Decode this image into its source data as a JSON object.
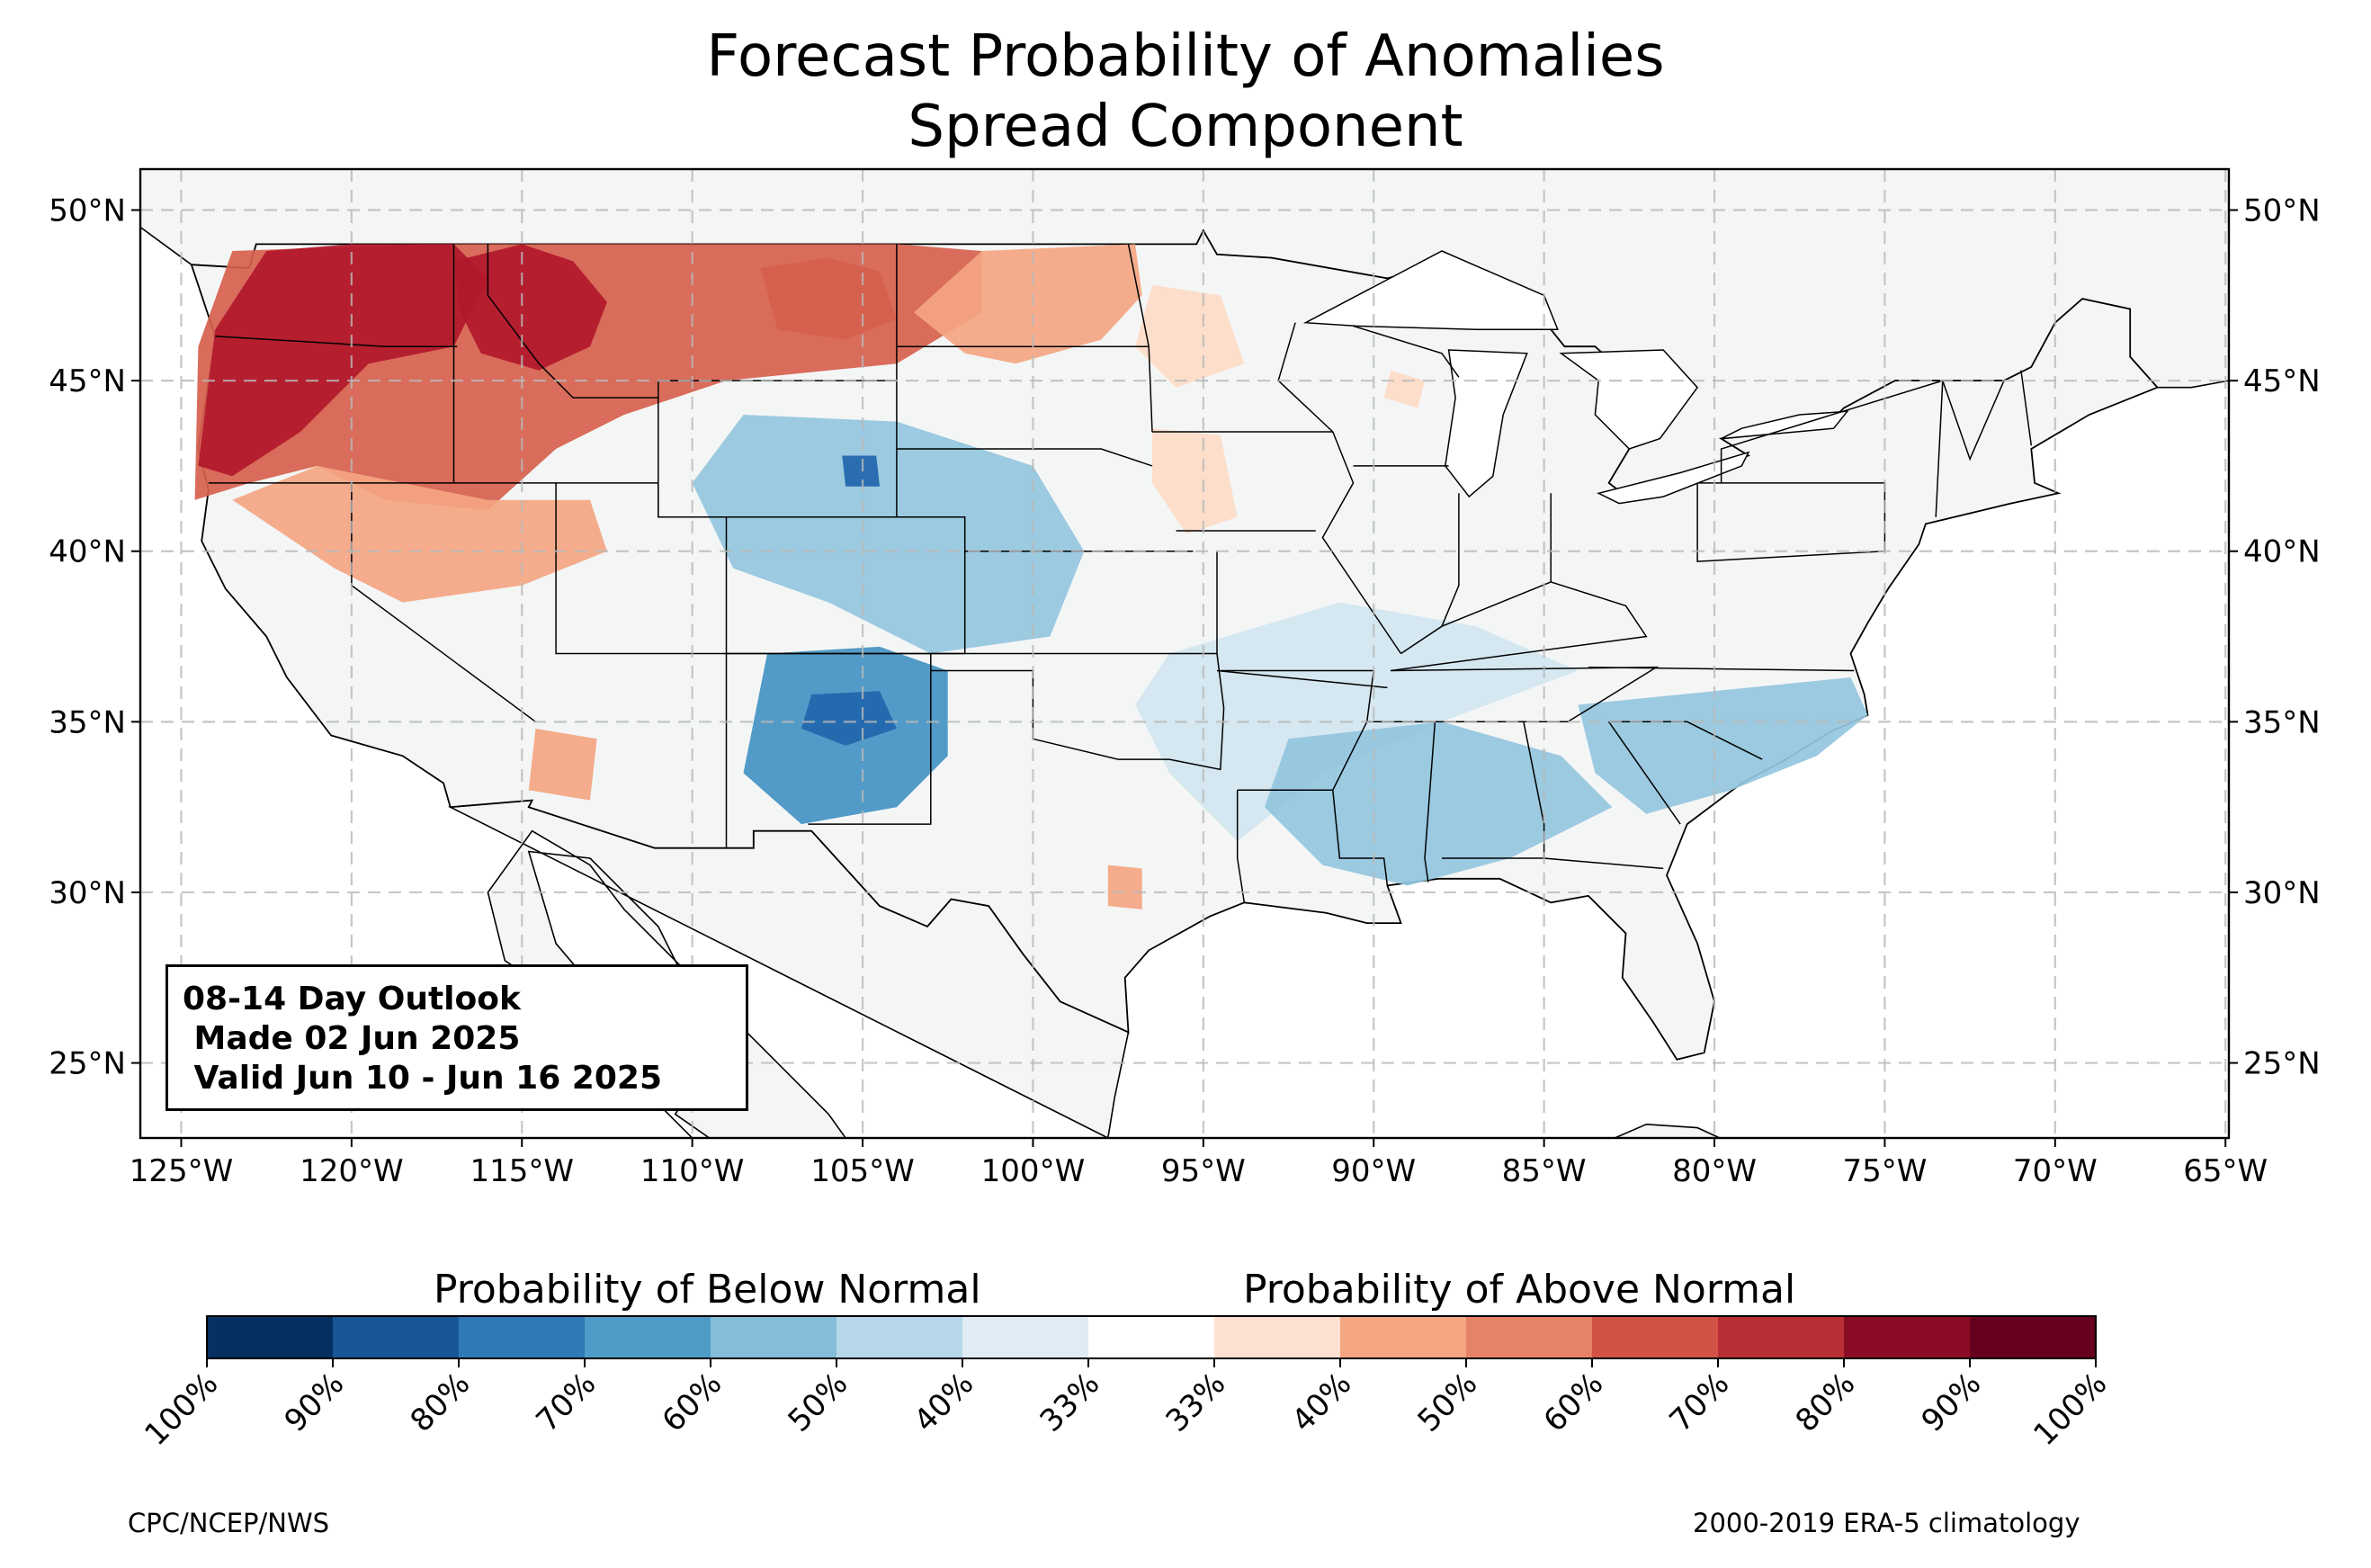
{
  "title_line1": "Forecast Probability of Anomalies",
  "title_line2": "Spread Component",
  "outlook": {
    "line1": "08-14 Day Outlook",
    "line2": " Made 02 Jun 2025",
    "line3": " Valid Jun 10 - Jun 16 2025"
  },
  "map": {
    "lon_range": [
      -126.2,
      -64.9
    ],
    "lat_range": [
      22.8,
      51.2
    ],
    "lon_ticks": [
      -125,
      -120,
      -115,
      -110,
      -105,
      -100,
      -95,
      -90,
      -85,
      -80,
      -75,
      -70,
      -65
    ],
    "lon_tick_labels": [
      "125°W",
      "120°W",
      "115°W",
      "110°W",
      "105°W",
      "100°W",
      "95°W",
      "90°W",
      "85°W",
      "80°W",
      "75°W",
      "70°W",
      "65°W"
    ],
    "lat_ticks": [
      25,
      30,
      35,
      40,
      45,
      50
    ],
    "lat_tick_labels": [
      "25°N",
      "30°N",
      "35°N",
      "40°N",
      "45°N",
      "50°N"
    ],
    "gridlines": true,
    "land_color": "#f4f6f6",
    "above_regions": [
      {
        "name": "pacific-northwest-core",
        "level": "70-80%",
        "color": "#b2182b",
        "points": [
          [
            -124.5,
            42.5
          ],
          [
            -124,
            46.5
          ],
          [
            -122.5,
            48.8
          ],
          [
            -120,
            49
          ],
          [
            -117,
            49
          ],
          [
            -116,
            48
          ],
          [
            -117,
            46
          ],
          [
            -119.5,
            45.5
          ],
          [
            -121.5,
            43.5
          ],
          [
            -123.5,
            42.2
          ]
        ]
      },
      {
        "name": "idaho-montana-core",
        "level": "70-80%",
        "color": "#b2182b",
        "points": [
          [
            -117,
            48.5
          ],
          [
            -115,
            49
          ],
          [
            -113.5,
            48.5
          ],
          [
            -112.5,
            47.3
          ],
          [
            -113,
            46
          ],
          [
            -114.5,
            45.3
          ],
          [
            -116.2,
            45.8
          ],
          [
            -116.8,
            47
          ]
        ]
      },
      {
        "name": "montana-east-core",
        "level": "60-70%",
        "color": "#d6604d",
        "points": [
          [
            -108,
            48.3
          ],
          [
            -106,
            48.6
          ],
          [
            -104.5,
            48.2
          ],
          [
            -104,
            46.8
          ],
          [
            -105.5,
            46.2
          ],
          [
            -107.5,
            46.5
          ]
        ]
      },
      {
        "name": "northwest-broad",
        "level": "60-70%",
        "color": "#d6604d",
        "points": [
          [
            -124.6,
            41.5
          ],
          [
            -124.5,
            46
          ],
          [
            -123.5,
            48.8
          ],
          [
            -118,
            49
          ],
          [
            -110,
            49
          ],
          [
            -104,
            49
          ],
          [
            -101.5,
            48.8
          ],
          [
            -101.5,
            47
          ],
          [
            -104,
            45.5
          ],
          [
            -109,
            45
          ],
          [
            -112,
            44
          ],
          [
            -114,
            43
          ],
          [
            -116,
            41.2
          ],
          [
            -119,
            41.5
          ],
          [
            -121,
            42.5
          ],
          [
            -123,
            42
          ]
        ]
      },
      {
        "name": "northern-plains",
        "level": "50-60%",
        "color": "#f4a582",
        "points": [
          [
            -101.5,
            48.8
          ],
          [
            -97,
            49
          ],
          [
            -96.8,
            47.5
          ],
          [
            -98,
            46.2
          ],
          [
            -100.5,
            45.5
          ],
          [
            -102,
            45.8
          ],
          [
            -103.5,
            47
          ]
        ]
      },
      {
        "name": "great-basin",
        "level": "40-50%",
        "color": "#f4a582",
        "points": [
          [
            -123.5,
            41.5
          ],
          [
            -121,
            42.5
          ],
          [
            -116,
            41.5
          ],
          [
            -113,
            41.5
          ],
          [
            -112.5,
            40
          ],
          [
            -115,
            39
          ],
          [
            -118.5,
            38.5
          ],
          [
            -120.5,
            39.5
          ],
          [
            -122,
            40.5
          ]
        ]
      },
      {
        "name": "upper-midwest",
        "level": "33-40%",
        "color": "#fddbc7",
        "points": [
          [
            -96.5,
            47.8
          ],
          [
            -94.5,
            47.5
          ],
          [
            -93.8,
            45.5
          ],
          [
            -95.8,
            44.8
          ],
          [
            -97,
            46
          ]
        ]
      },
      {
        "name": "iowa-area",
        "level": "33-40%",
        "color": "#fddbc7",
        "points": [
          [
            -96.5,
            43.6
          ],
          [
            -94.5,
            43.4
          ],
          [
            -94,
            41
          ],
          [
            -95.5,
            40.5
          ],
          [
            -96.5,
            42
          ]
        ]
      },
      {
        "name": "southern-arizona",
        "level": "40-50%",
        "color": "#f4a582",
        "points": [
          [
            -114.6,
            34.8
          ],
          [
            -112.8,
            34.5
          ],
          [
            -113,
            32.7
          ],
          [
            -114.8,
            33
          ]
        ]
      },
      {
        "name": "south-texas",
        "level": "40-50%",
        "color": "#f4a582",
        "points": [
          [
            -97.8,
            30.8
          ],
          [
            -96.8,
            30.7
          ],
          [
            -96.8,
            29.5
          ],
          [
            -97.8,
            29.6
          ]
        ]
      },
      {
        "name": "wisconsin",
        "level": "33-40%",
        "color": "#fddbc7",
        "points": [
          [
            -89.5,
            45.3
          ],
          [
            -88.5,
            45
          ],
          [
            -88.7,
            44.2
          ],
          [
            -89.7,
            44.5
          ]
        ]
      }
    ],
    "below_regions": [
      {
        "name": "wyoming-colorado",
        "level": "50-60%",
        "color": "#92c5de",
        "points": [
          [
            -108.5,
            44
          ],
          [
            -104,
            43.8
          ],
          [
            -100,
            42.5
          ],
          [
            -98.5,
            40
          ],
          [
            -99.5,
            37.5
          ],
          [
            -103,
            37
          ],
          [
            -106,
            38.5
          ],
          [
            -108.8,
            39.5
          ],
          [
            -110,
            42
          ]
        ]
      },
      {
        "name": "new-mexico-texas",
        "level": "60-70%",
        "color": "#4393c3",
        "points": [
          [
            -107.8,
            37
          ],
          [
            -104.5,
            37.2
          ],
          [
            -102.5,
            36.5
          ],
          [
            -102.5,
            34
          ],
          [
            -104,
            32.5
          ],
          [
            -106.8,
            32
          ],
          [
            -108.5,
            33.5
          ]
        ]
      },
      {
        "name": "new-mexico-core",
        "level": "70-80%",
        "color": "#2166ac",
        "points": [
          [
            -106.5,
            35.8
          ],
          [
            -104.5,
            35.9
          ],
          [
            -104,
            34.8
          ],
          [
            -105.5,
            34.3
          ],
          [
            -106.8,
            34.8
          ]
        ]
      },
      {
        "name": "wyoming-core",
        "level": "70-80%",
        "color": "#2166ac",
        "points": [
          [
            -105.6,
            42.8
          ],
          [
            -104.6,
            42.8
          ],
          [
            -104.5,
            41.9
          ],
          [
            -105.5,
            41.9
          ]
        ]
      },
      {
        "name": "mid-mississippi",
        "level": "40-50%",
        "color": "#d1e5f0",
        "points": [
          [
            -96,
            37
          ],
          [
            -91,
            38.5
          ],
          [
            -87,
            37.8
          ],
          [
            -84,
            36.5
          ],
          [
            -88,
            35
          ],
          [
            -91.5,
            33.5
          ],
          [
            -94,
            31.5
          ],
          [
            -96,
            33.5
          ],
          [
            -97,
            35.5
          ]
        ]
      },
      {
        "name": "deep-south",
        "level": "40-50%",
        "color": "#92c5de",
        "points": [
          [
            -92.5,
            34.5
          ],
          [
            -88,
            35
          ],
          [
            -84.5,
            34
          ],
          [
            -83,
            32.5
          ],
          [
            -86,
            31
          ],
          [
            -89,
            30.2
          ],
          [
            -91.5,
            30.8
          ],
          [
            -93.2,
            32.5
          ]
        ]
      },
      {
        "name": "carolinas",
        "level": "40-50%",
        "color": "#92c5de",
        "points": [
          [
            -84,
            35.5
          ],
          [
            -76,
            36.3
          ],
          [
            -75.5,
            35.2
          ],
          [
            -77,
            34
          ],
          [
            -79.5,
            33
          ],
          [
            -82,
            32.3
          ],
          [
            -83.5,
            33.5
          ]
        ]
      }
    ],
    "states_note": "US state borders approximate"
  },
  "colorbar": {
    "below_label": "Probability of Below Normal",
    "above_label": "Probability of Above Normal",
    "colors": [
      "#053061",
      "#195696",
      "#2f79b5",
      "#4f9bc7",
      "#86bdda",
      "#b6d7e8",
      "#dfecf4",
      "#ffffff",
      "#fce0d0",
      "#f4a582",
      "#e58267",
      "#d05346",
      "#b92f35",
      "#8a0d25",
      "#67001f"
    ],
    "tick_labels": [
      "100%",
      "90%",
      "80%",
      "70%",
      "60%",
      "50%",
      "40%",
      "33%",
      "33%",
      "40%",
      "50%",
      "60%",
      "70%",
      "80%",
      "90%",
      "100%"
    ]
  },
  "footer_left": "CPC/NCEP/NWS",
  "footer_right": "2000-2019 ERA-5 climatology"
}
